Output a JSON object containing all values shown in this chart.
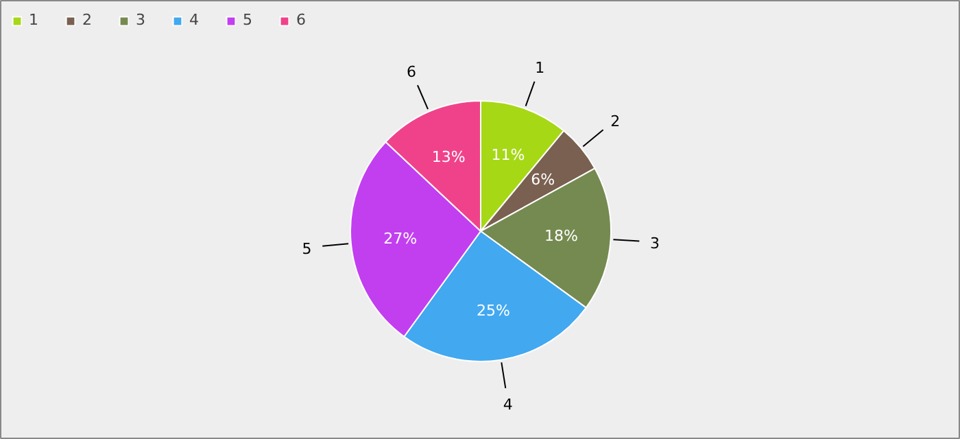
{
  "chart_data": {
    "type": "pie",
    "categories": [
      "1",
      "2",
      "3",
      "4",
      "5",
      "6"
    ],
    "values": [
      11,
      6,
      18,
      25,
      27,
      13
    ],
    "value_labels": [
      "11%",
      "6%",
      "18%",
      "25%",
      "27%",
      "13%"
    ],
    "colors": [
      "#a6d816",
      "#7a6050",
      "#758a50",
      "#42a8f0",
      "#c23ff0",
      "#f0428a"
    ],
    "legend": "top left"
  }
}
